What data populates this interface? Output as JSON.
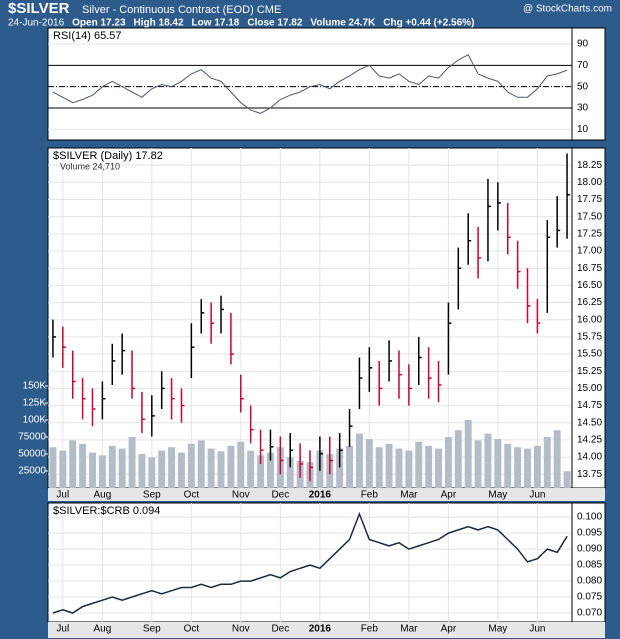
{
  "header": {
    "symbol": "$SILVER",
    "name": "Silver - Continuous Contract (EOD) CME",
    "watermark": "@ StockCharts.com",
    "quote": [
      "24-Jun-2016",
      "Open 17.23",
      "High 18.42",
      "Low 17.18",
      "Close 17.82",
      "Volume 24.7K",
      "Chg +0.44 (+2.56%)"
    ]
  },
  "chart_data": [
    {
      "type": "line",
      "label": "RSI(14) 65.57",
      "color": "#4a5670",
      "values": [
        45,
        40,
        35,
        38,
        42,
        50,
        55,
        50,
        45,
        40,
        48,
        52,
        50,
        55,
        62,
        66,
        58,
        55,
        45,
        35,
        28,
        25,
        30,
        38,
        42,
        45,
        50,
        52,
        48,
        55,
        60,
        66,
        70,
        60,
        58,
        62,
        55,
        52,
        60,
        58,
        68,
        75,
        80,
        62,
        58,
        55,
        45,
        40,
        40,
        48,
        60,
        62,
        65.57
      ],
      "ylim": [
        0,
        105
      ],
      "yticks": [
        10,
        30,
        50,
        70,
        90
      ],
      "reference_lines": [
        {
          "value": 70,
          "style": "solid"
        },
        {
          "value": 50,
          "style": "dashdot"
        },
        {
          "value": 30,
          "style": "solid"
        }
      ]
    },
    {
      "type": "ohlc",
      "label": "$SILVER (Daily) 17.82",
      "volume_label": "Volume 24,710",
      "categories": [
        null,
        "Jul",
        null,
        null,
        null,
        "Aug",
        null,
        null,
        null,
        null,
        "Sep",
        null,
        null,
        null,
        "Oct",
        null,
        null,
        null,
        null,
        "Nov",
        null,
        null,
        null,
        "Dec",
        null,
        null,
        null,
        "2016",
        null,
        null,
        null,
        null,
        "Feb",
        null,
        null,
        null,
        "Mar",
        null,
        null,
        null,
        "Apr",
        null,
        null,
        null,
        null,
        "May",
        null,
        null,
        null,
        "Jun",
        null,
        null,
        null
      ],
      "high": [
        16.0,
        15.9,
        15.55,
        15.15,
        15.0,
        15.1,
        15.65,
        15.8,
        15.55,
        14.95,
        14.9,
        15.25,
        15.15,
        15.0,
        15.95,
        16.3,
        16.25,
        16.35,
        16.1,
        15.2,
        14.75,
        14.4,
        14.4,
        14.3,
        14.35,
        14.2,
        14.1,
        14.3,
        14.3,
        14.35,
        14.7,
        15.45,
        15.6,
        15.4,
        15.7,
        15.55,
        15.35,
        15.75,
        15.6,
        15.4,
        16.25,
        17.05,
        17.55,
        17.35,
        18.05,
        18.0,
        17.7,
        17.15,
        16.75,
        16.3,
        17.45,
        17.8,
        18.42
      ],
      "low": [
        15.45,
        15.3,
        14.85,
        14.55,
        14.45,
        14.55,
        15.05,
        15.2,
        14.85,
        14.35,
        14.3,
        14.7,
        14.55,
        14.5,
        15.15,
        15.8,
        15.65,
        15.8,
        15.35,
        14.65,
        14.2,
        13.9,
        13.95,
        13.75,
        13.85,
        13.7,
        13.65,
        13.8,
        13.75,
        13.85,
        14.15,
        14.7,
        14.95,
        14.75,
        15.1,
        14.85,
        14.75,
        15.05,
        14.85,
        14.8,
        15.2,
        16.15,
        16.8,
        16.6,
        16.85,
        17.3,
        16.95,
        16.45,
        15.95,
        15.8,
        16.1,
        17.05,
        17.18
      ],
      "close": [
        15.75,
        15.6,
        15.1,
        14.85,
        14.7,
        14.85,
        15.4,
        15.55,
        15.0,
        14.55,
        14.6,
        15.0,
        14.85,
        14.75,
        15.6,
        16.1,
        15.95,
        16.15,
        15.5,
        14.85,
        14.4,
        14.1,
        14.15,
        13.95,
        14.1,
        13.9,
        13.85,
        14.05,
        13.95,
        14.1,
        14.45,
        15.15,
        15.3,
        15.0,
        15.4,
        15.2,
        15.0,
        15.45,
        15.15,
        15.05,
        15.95,
        16.75,
        17.15,
        16.9,
        17.65,
        17.7,
        17.2,
        16.7,
        16.2,
        15.95,
        17.2,
        17.3,
        17.82
      ],
      "volume": [
        60000,
        55000,
        70000,
        65000,
        52000,
        48000,
        62000,
        58000,
        75000,
        50000,
        45000,
        55000,
        60000,
        52000,
        65000,
        70000,
        58000,
        54000,
        62000,
        68000,
        55000,
        48000,
        52000,
        60000,
        45000,
        40000,
        38000,
        55000,
        50000,
        58000,
        62000,
        80000,
        72000,
        60000,
        65000,
        58000,
        55000,
        68000,
        62000,
        58000,
        75000,
        85000,
        100000,
        70000,
        80000,
        72000,
        65000,
        60000,
        58000,
        62000,
        75000,
        85000,
        24710
      ],
      "ylim": [
        13.55,
        18.5
      ],
      "yticks": [
        13.75,
        {
          "value": 14,
          "label": "14.00"
        },
        14.25,
        {
          "value": 14.5,
          "label": "14.50"
        },
        14.75,
        {
          "value": 15,
          "label": "15.00"
        },
        15.25,
        {
          "value": 15.5,
          "label": "15.50"
        },
        15.75,
        {
          "value": 16,
          "label": "16.00"
        },
        16.25,
        {
          "value": 16.5,
          "label": "16.50"
        },
        16.75,
        {
          "value": 17,
          "label": "17.00"
        },
        17.25,
        {
          "value": 17.5,
          "label": "17.50"
        },
        17.75,
        {
          "value": 18,
          "label": "18.00"
        },
        18.25
      ],
      "volume_ylim": [
        0,
        500000
      ],
      "volume_yticks": [
        25000,
        50000,
        75000,
        {
          "value": 100000,
          "label": "100K"
        },
        {
          "value": 125000,
          "label": "125K"
        },
        {
          "value": 150000,
          "label": "150K"
        }
      ],
      "up_color": "#000000",
      "down_color": "#cc0033",
      "volume_color": "#b4bcc8"
    },
    {
      "type": "line",
      "label": "$SILVER:$CRB 0.094",
      "color": "#1a2a40",
      "categories": [
        null,
        "Jul",
        null,
        null,
        null,
        "Aug",
        null,
        null,
        null,
        null,
        "Sep",
        null,
        null,
        null,
        "Oct",
        null,
        null,
        null,
        null,
        "Nov",
        null,
        null,
        null,
        "Dec",
        null,
        null,
        null,
        "2016",
        null,
        null,
        null,
        null,
        "Feb",
        null,
        null,
        null,
        "Mar",
        null,
        null,
        null,
        "Apr",
        null,
        null,
        null,
        null,
        "May",
        null,
        null,
        null,
        "Jun",
        null,
        null,
        null
      ],
      "values": [
        0.07,
        0.071,
        0.07,
        0.072,
        0.073,
        0.074,
        0.075,
        0.074,
        0.075,
        0.076,
        0.077,
        0.076,
        0.077,
        0.078,
        0.078,
        0.079,
        0.078,
        0.079,
        0.079,
        0.08,
        0.08,
        0.081,
        0.082,
        0.081,
        0.083,
        0.084,
        0.085,
        0.084,
        0.087,
        0.09,
        0.093,
        0.101,
        0.093,
        0.092,
        0.091,
        0.092,
        0.09,
        0.091,
        0.092,
        0.093,
        0.095,
        0.096,
        0.097,
        0.096,
        0.097,
        0.096,
        0.093,
        0.09,
        0.086,
        0.087,
        0.09,
        0.089,
        0.094
      ],
      "ylim": [
        0.0672,
        0.1044
      ],
      "yticks": [
        {
          "value": 0.07,
          "label": "0.070"
        },
        {
          "value": 0.075,
          "label": "0.075"
        },
        {
          "value": 0.08,
          "label": "0.080"
        },
        {
          "value": 0.085,
          "label": "0.085"
        },
        {
          "value": 0.09,
          "label": "0.090"
        },
        {
          "value": 0.095,
          "label": "0.095"
        },
        {
          "value": 0.1,
          "label": "0.100"
        }
      ]
    }
  ]
}
